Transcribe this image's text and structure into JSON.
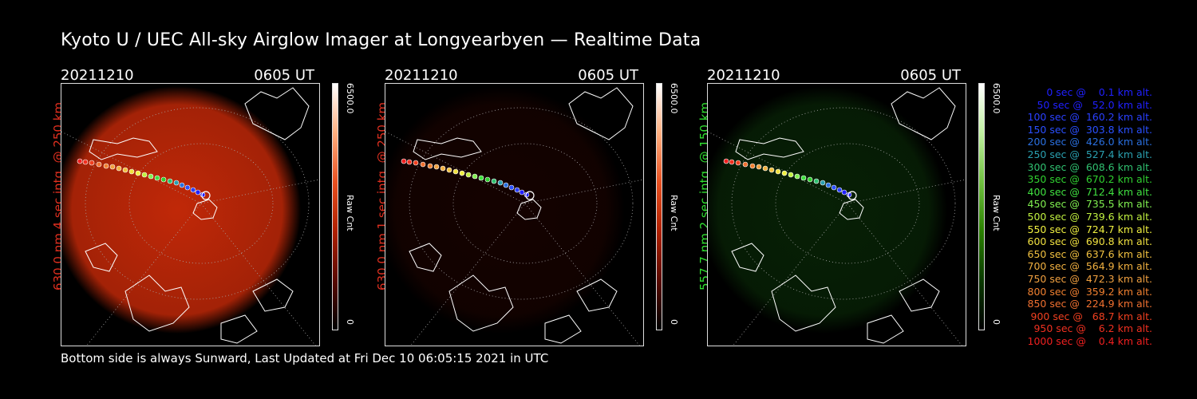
{
  "title": "Kyoto U / UEC All-sky Airglow Imager at Longyearbyen — Realtime Data",
  "footer": "Bottom side is always Sunward, Last Updated at Fri Dec 10 06:05:15 2021 in UTC",
  "panels": [
    {
      "date": "20211210",
      "time": "0605 UT",
      "ylabel": "630.0 nm 4 sec intg. @ 250 km",
      "ylabel_color": "#e03020",
      "cbar_max": "6500.0",
      "cbar_label": "Raw Cnt",
      "cbar_min": "0",
      "cbar_gradient": "linear-gradient(to top,#000,#5a0a00,#b02000,#e85020,#ffb080,#fff)",
      "glow": "#c02808",
      "glow_level": 1.0
    },
    {
      "date": "20211210",
      "time": "0605 UT",
      "ylabel": "630.0 nm 1 sec intg. @ 250 km",
      "ylabel_color": "#e03020",
      "cbar_max": "6500.0",
      "cbar_label": "Raw Cnt",
      "cbar_min": "0",
      "cbar_gradient": "linear-gradient(to top,#000,#5a0a00,#b02000,#e85020,#ffb080,#fff)",
      "glow": "#3a0600",
      "glow_level": 0.35
    },
    {
      "date": "20211210",
      "time": "0605 UT",
      "ylabel": "557.7 nm 2 sec intg. @ 150 km",
      "ylabel_color": "#30e030",
      "cbar_max": "6500.0",
      "cbar_label": "Raw Cnt",
      "cbar_min": "0",
      "cbar_gradient": "linear-gradient(to top,#000,#0a3a00,#2a8000,#70c040,#c0f0a0,#fff)",
      "glow": "#0d3a0a",
      "glow_level": 0.55
    }
  ],
  "legend": [
    {
      "text": "   0 sec @    0.1 km alt.",
      "color": "#2020ff"
    },
    {
      "text": "  50 sec @   52.0 km alt.",
      "color": "#2020ff"
    },
    {
      "text": " 100 sec @  160.2 km alt.",
      "color": "#2a40ff"
    },
    {
      "text": " 150 sec @  303.8 km alt.",
      "color": "#2a50ff"
    },
    {
      "text": " 200 sec @  426.0 km alt.",
      "color": "#2a70e0"
    },
    {
      "text": " 250 sec @  527.4 km alt.",
      "color": "#2aa0b0"
    },
    {
      "text": " 300 sec @  608.6 km alt.",
      "color": "#30c070"
    },
    {
      "text": " 350 sec @  670.2 km alt.",
      "color": "#30d030"
    },
    {
      "text": " 400 sec @  712.4 km alt.",
      "color": "#40e040"
    },
    {
      "text": " 450 sec @  735.5 km alt.",
      "color": "#80f050"
    },
    {
      "text": " 500 sec @  739.6 km alt.",
      "color": "#c0f040"
    },
    {
      "text": " 550 sec @  724.7 km alt.",
      "color": "#f0f040"
    },
    {
      "text": " 600 sec @  690.8 km alt.",
      "color": "#f0e040"
    },
    {
      "text": " 650 sec @  637.6 km alt.",
      "color": "#f0c040"
    },
    {
      "text": " 700 sec @  564.9 km alt.",
      "color": "#f0b040"
    },
    {
      "text": " 750 sec @  472.3 km alt.",
      "color": "#f0a040"
    },
    {
      "text": " 800 sec @  359.2 km alt.",
      "color": "#f08030"
    },
    {
      "text": " 850 sec @  224.9 km alt.",
      "color": "#f07030"
    },
    {
      "text": " 900 sec @   68.7 km alt.",
      "color": "#f04020"
    },
    {
      "text": " 950 sec @    6.2 km alt.",
      "color": "#f03020"
    },
    {
      "text": "1000 sec @    0.4 km alt.",
      "color": "#f02020"
    }
  ]
}
